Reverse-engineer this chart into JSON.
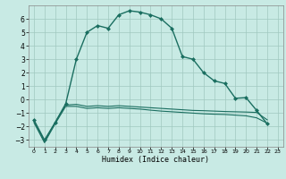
{
  "xlabel": "Humidex (Indice chaleur)",
  "background_color": "#c8eae4",
  "grid_color": "#a0c8c0",
  "line_color": "#1a6e60",
  "x": [
    0,
    1,
    2,
    3,
    4,
    5,
    6,
    7,
    8,
    9,
    10,
    11,
    12,
    13,
    14,
    15,
    16,
    17,
    18,
    19,
    20,
    21,
    22,
    23
  ],
  "line1": [
    -1.5,
    -3.0,
    -1.7,
    -0.3,
    3.0,
    5.0,
    5.5,
    5.3,
    6.3,
    6.6,
    6.5,
    6.3,
    6.0,
    5.3,
    3.2,
    3.0,
    2.0,
    1.4,
    1.2,
    0.1,
    0.15,
    -0.8,
    -1.8,
    null
  ],
  "line2": [
    -1.6,
    -3.1,
    -1.7,
    -0.4,
    -0.35,
    -0.5,
    -0.45,
    -0.5,
    -0.45,
    -0.5,
    -0.55,
    -0.6,
    -0.65,
    -0.7,
    -0.75,
    -0.8,
    -0.82,
    -0.85,
    -0.88,
    -0.9,
    -0.92,
    -0.95,
    -1.5,
    null
  ],
  "line3": [
    -1.7,
    -3.2,
    -1.8,
    -0.5,
    -0.5,
    -0.65,
    -0.6,
    -0.65,
    -0.6,
    -0.65,
    -0.7,
    -0.78,
    -0.85,
    -0.9,
    -0.95,
    -1.0,
    -1.05,
    -1.08,
    -1.1,
    -1.15,
    -1.2,
    -1.35,
    -1.75,
    null
  ],
  "ylim": [
    -3.5,
    7.0
  ],
  "xlim": [
    -0.5,
    23.5
  ],
  "yticks": [
    -3,
    -2,
    -1,
    0,
    1,
    2,
    3,
    4,
    5,
    6
  ],
  "xticks": [
    0,
    1,
    2,
    3,
    4,
    5,
    6,
    7,
    8,
    9,
    10,
    11,
    12,
    13,
    14,
    15,
    16,
    17,
    18,
    19,
    20,
    21,
    22,
    23
  ],
  "markersize": 2.5,
  "lw_main": 1.0,
  "lw_sub": 0.8
}
